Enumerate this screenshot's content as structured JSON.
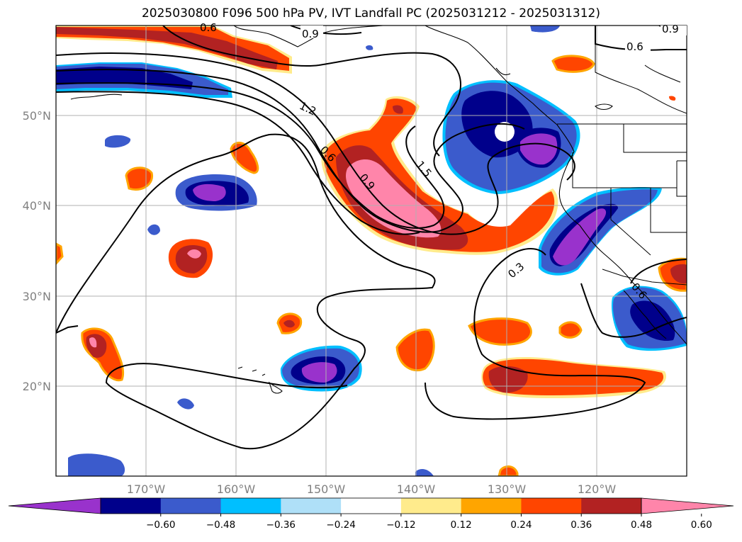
{
  "title": "2025030800 F096 500 hPa PV, IVT Landfall PC (2025031212 - 2025031312)",
  "latitude_labels": [
    "50°N",
    "40°N",
    "30°N",
    "20°N"
  ],
  "longitude_labels": [
    "170°W",
    "160°W",
    "150°W",
    "140°W",
    "130°W",
    "120°W"
  ],
  "contour_labels": [
    "0.9",
    "0.6",
    "1.2",
    "0.6",
    "0.9",
    "1.5",
    "0.3",
    "0.6",
    "0.9",
    "0.6"
  ],
  "colorbar": {
    "tick_labels": [
      "−0.60",
      "−0.48",
      "−0.36",
      "−0.24",
      "−0.12",
      "0.12",
      "0.24",
      "0.36",
      "0.48",
      "0.60"
    ],
    "colors": [
      "#9932cc",
      "#00008b",
      "#3b5bcc",
      "#00bfff",
      "#afe0f8",
      "#ffffff",
      "#ffeb8c",
      "#ffa500",
      "#ff4500",
      "#b22222",
      "#ff85aa"
    ],
    "extend": "both"
  },
  "map": {
    "extent_lon": [
      -180,
      -110
    ],
    "extent_lat": [
      10,
      60
    ],
    "gridlines": true,
    "fill_colors": {
      "neg_strong": "#9932cc",
      "neg_2": "#00008b",
      "neg_3": "#3b5bcc",
      "neg_4": "#00bfff",
      "pos_1": "#ffeb8c",
      "pos_2": "#ffa500",
      "pos_3": "#ff4500",
      "pos_4": "#b22222",
      "pos_strong": "#ff85aa"
    }
  }
}
